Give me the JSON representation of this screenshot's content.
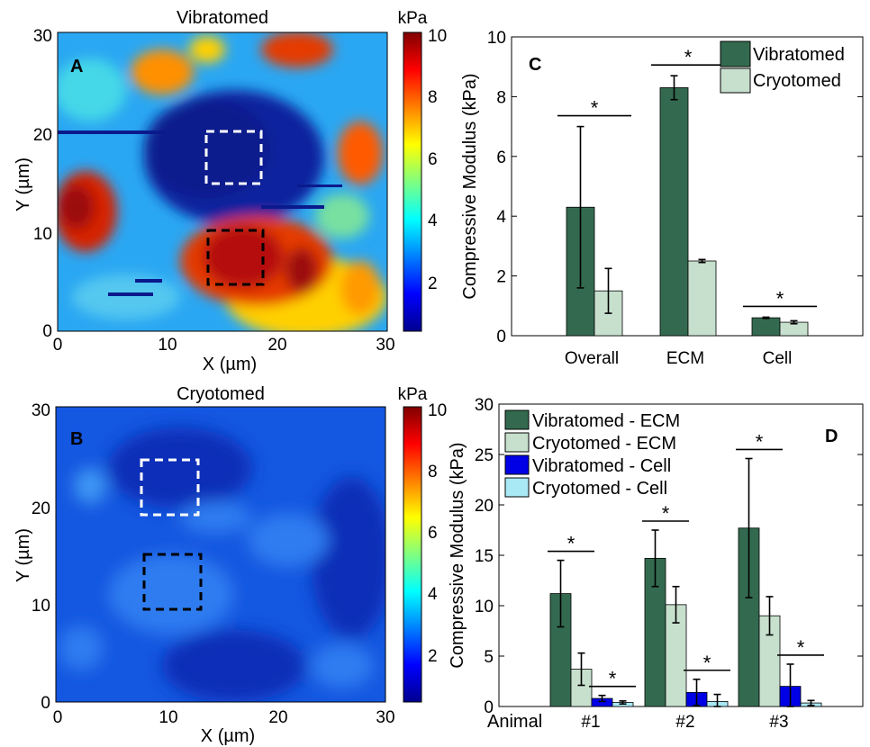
{
  "colormap": [
    "#00008f",
    "#0000ff",
    "#00ffff",
    "#ffff00",
    "#ff0000",
    "#800000"
  ],
  "chart_data": [
    {
      "type": "heatmap",
      "panel": "A",
      "title": "Vibratomed",
      "xlabel": "X (µm)",
      "ylabel": "Y (µm)",
      "xlim": [
        0,
        30
      ],
      "ylim": [
        0,
        30
      ],
      "xticks": [
        "0",
        "10",
        "20",
        "30"
      ],
      "yticks": [
        "0",
        "10",
        "20",
        "30"
      ],
      "colorbar": {
        "label": "kPa",
        "range": [
          0.3,
          10
        ],
        "ticks": [
          "2",
          "4",
          "6",
          "8",
          "10"
        ]
      },
      "regions": [
        {
          "name": "cell",
          "x": [
            13,
            18
          ],
          "y": [
            15,
            20
          ],
          "style": "white-dashed"
        },
        {
          "name": "ECM",
          "x": [
            13,
            18
          ],
          "y": [
            5,
            10
          ],
          "style": "black-dashed"
        }
      ]
    },
    {
      "type": "heatmap",
      "panel": "B",
      "title": "Cryotomed",
      "xlabel": "X (µm)",
      "ylabel": "Y (µm)",
      "xlim": [
        0,
        30
      ],
      "ylim": [
        0,
        30
      ],
      "xticks": [
        "0",
        "10",
        "20",
        "30"
      ],
      "yticks": [
        "0",
        "10",
        "20",
        "30"
      ],
      "colorbar": {
        "label": "kPa",
        "range": [
          0.3,
          10
        ],
        "ticks": [
          "2",
          "4",
          "6",
          "8",
          "10"
        ]
      },
      "regions": [
        {
          "name": "cell",
          "x": [
            8,
            13
          ],
          "y": [
            19,
            24
          ],
          "style": "white-dashed"
        },
        {
          "name": "ECM",
          "x": [
            8,
            13
          ],
          "y": [
            10,
            15
          ],
          "style": "black-dashed"
        }
      ]
    },
    {
      "type": "bar",
      "panel": "C",
      "ylabel": "Compressive Modulus (kPa)",
      "ylim": [
        0,
        10
      ],
      "yticks": [
        "0",
        "2",
        "4",
        "6",
        "8",
        "10"
      ],
      "categories": [
        "Overall",
        "ECM",
        "Cell"
      ],
      "series": [
        {
          "name": "Vibratomed",
          "color": "#336a4f",
          "values": [
            4.3,
            8.3,
            0.6
          ],
          "errors": [
            2.7,
            0.4,
            0.02
          ]
        },
        {
          "name": "Cryotomed",
          "color": "#c7e0ce",
          "values": [
            1.5,
            2.5,
            0.45
          ],
          "errors": [
            0.75,
            0.05,
            0.05
          ]
        }
      ],
      "significance": [
        "*",
        "*",
        "*"
      ],
      "legend": "top-right"
    },
    {
      "type": "bar",
      "panel": "D",
      "ylabel": "Compressive Modulus (kPa)",
      "xlabel": "Animal",
      "ylim": [
        0,
        30
      ],
      "yticks": [
        "0",
        "5",
        "10",
        "15",
        "20",
        "25",
        "30"
      ],
      "categories": [
        "#1",
        "#2",
        "#3"
      ],
      "series": [
        {
          "name": "Vibratomed - ECM",
          "color": "#336a4f",
          "values": [
            11.2,
            14.7,
            17.7
          ],
          "errors": [
            3.3,
            2.8,
            6.9
          ]
        },
        {
          "name": "Cryotomed -  ECM",
          "color": "#c7e0ce",
          "values": [
            3.7,
            10.1,
            9.0
          ],
          "errors": [
            1.6,
            1.8,
            1.9
          ]
        },
        {
          "name": "Vibratomed - Cell",
          "color": "#0000e6",
          "values": [
            0.8,
            1.4,
            2.0
          ],
          "errors": [
            0.3,
            1.3,
            2.2
          ]
        },
        {
          "name": "Cryotomed -  Cell",
          "color": "#a9e8f5",
          "values": [
            0.4,
            0.5,
            0.35
          ],
          "errors": [
            0.15,
            0.7,
            0.25
          ]
        }
      ],
      "significance": [
        "*",
        "*",
        "*",
        "*",
        "*",
        "*"
      ],
      "legend": "top-left"
    }
  ]
}
